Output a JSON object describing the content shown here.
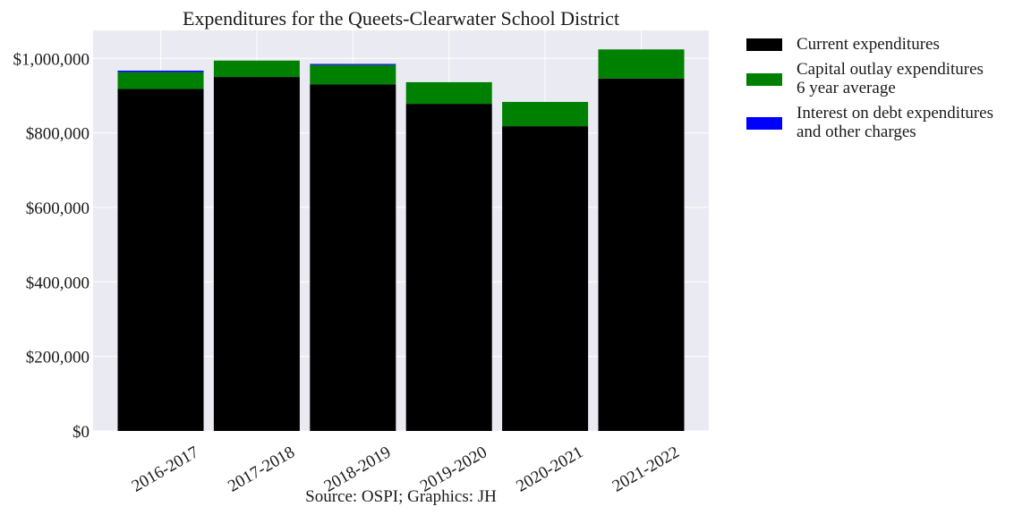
{
  "chart_data": {
    "type": "bar",
    "stacked": true,
    "title": "Expenditures for the Queets-Clearwater School District",
    "caption": "Source: OSPI; Graphics: JH",
    "categories": [
      "2016-2017",
      "2017-2018",
      "2018-2019",
      "2019-2020",
      "2020-2021",
      "2021-2022"
    ],
    "series": [
      {
        "name": "Current expenditures",
        "color": "#000000",
        "values": [
          918000,
          950000,
          930000,
          878000,
          818000,
          946000
        ]
      },
      {
        "name": "Capital outlay expenditures\n6 year average",
        "color": "#008000",
        "values": [
          45000,
          44000,
          52000,
          58000,
          65000,
          78000
        ]
      },
      {
        "name": "Interest on debt expenditures\nand other charges",
        "color": "#0000ff",
        "values": [
          4000,
          0,
          3000,
          0,
          0,
          0
        ]
      }
    ],
    "yticks": [
      0,
      200000,
      400000,
      600000,
      800000,
      1000000
    ],
    "ytick_labels": [
      "$0",
      "$200,000",
      "$400,000",
      "$600,000",
      "$800,000",
      "$1,000,000"
    ],
    "ylim": [
      0,
      1075000
    ],
    "grid": true,
    "legend_position": "outside-right"
  }
}
